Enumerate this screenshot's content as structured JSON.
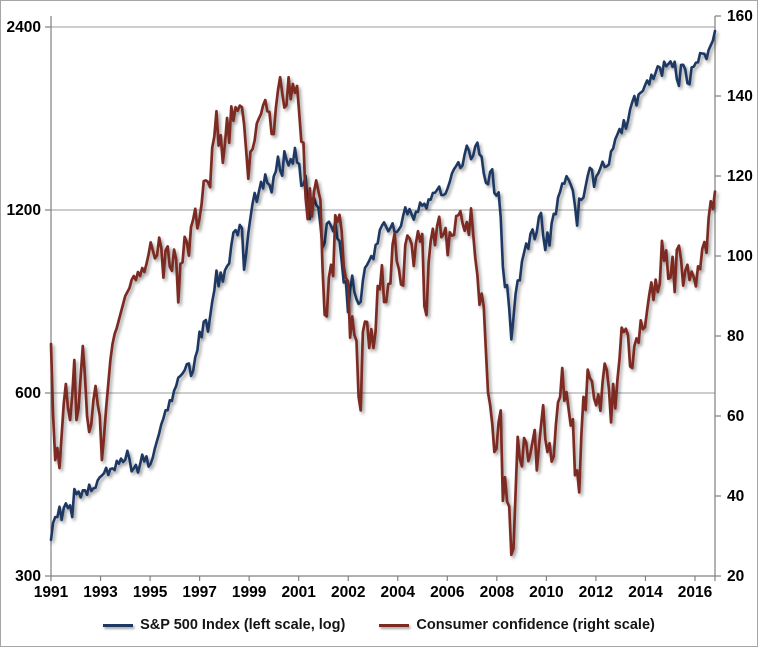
{
  "chart_data": {
    "type": "line",
    "title": "",
    "frequency": "monthly",
    "x_start": "1991-01",
    "x_end": "2017-02",
    "x_tick_labels": [
      "1991",
      "1993",
      "1995",
      "1997",
      "1999",
      "2001",
      "2002",
      "2004",
      "2006",
      "2008",
      "2010",
      "2012",
      "2014",
      "2016"
    ],
    "left_axis": {
      "scale": "log",
      "range": [
        300,
        2400
      ],
      "tick_labels": [
        "2400",
        "1200",
        "600",
        "300"
      ],
      "tick_values": [
        2400,
        1200,
        600,
        300
      ]
    },
    "right_axis": {
      "scale": "linear",
      "range": [
        20,
        160
      ],
      "tick_labels": [
        "160",
        "140",
        "120",
        "100",
        "80",
        "60",
        "40",
        "20"
      ],
      "tick_values": [
        160,
        140,
        120,
        100,
        80,
        60,
        40,
        20
      ]
    },
    "grid": "horizontal-at-left-ticks",
    "legend_position": "bottom-center",
    "colors": {
      "sp500": "#1F3864",
      "confidence": "#7B2B22",
      "axis": "#808080",
      "grid": "#9b9b9b",
      "tick_text": "#000000"
    },
    "series": [
      {
        "name": "S&P 500 Index (left scale, log)",
        "axis": "left",
        "color": "#1F3864",
        "values": [
          344,
          367,
          375,
          375,
          390,
          371,
          388,
          395,
          388,
          392,
          375,
          417,
          409,
          413,
          404,
          415,
          415,
          408,
          424,
          414,
          418,
          419,
          431,
          436,
          439,
          443,
          452,
          440,
          450,
          451,
          448,
          464,
          459,
          468,
          462,
          466,
          482,
          467,
          446,
          451,
          457,
          444,
          458,
          475,
          463,
          472,
          454,
          459,
          470,
          487,
          501,
          515,
          533,
          545,
          562,
          562,
          584,
          582,
          605,
          616,
          636,
          640,
          646,
          654,
          669,
          671,
          640,
          652,
          687,
          705,
          757,
          741,
          786,
          791,
          757,
          801,
          848,
          885,
          954,
          899,
          947,
          915,
          955,
          970,
          980,
          1049,
          1102,
          1112,
          1091,
          1134,
          1121,
          957,
          1017,
          1099,
          1164,
          1229,
          1280,
          1238,
          1286,
          1335,
          1302,
          1373,
          1329,
          1320,
          1283,
          1363,
          1389,
          1469,
          1394,
          1366,
          1499,
          1452,
          1421,
          1455,
          1431,
          1518,
          1437,
          1429,
          1315,
          1320,
          1366,
          1240,
          1160,
          1249,
          1256,
          1224,
          1211,
          1134,
          1041,
          1060,
          1139,
          1148,
          1130,
          1107,
          1147,
          1077,
          1067,
          990,
          912,
          916,
          815,
          886,
          936,
          880,
          856,
          841,
          848,
          917,
          964,
          975,
          990,
          1008,
          996,
          1051,
          1058,
          1112,
          1131,
          1145,
          1126,
          1107,
          1121,
          1141,
          1102,
          1104,
          1115,
          1130,
          1174,
          1212,
          1181,
          1204,
          1181,
          1157,
          1192,
          1191,
          1234,
          1220,
          1229,
          1207,
          1249,
          1248,
          1280,
          1281,
          1295,
          1311,
          1270,
          1270,
          1277,
          1304,
          1336,
          1378,
          1401,
          1418,
          1438,
          1407,
          1421,
          1482,
          1531,
          1503,
          1455,
          1474,
          1527,
          1549,
          1481,
          1468,
          1379,
          1331,
          1323,
          1386,
          1400,
          1280,
          1267,
          1283,
          1166,
          969,
          896,
          903,
          826,
          735,
          798,
          873,
          919,
          919,
          987,
          1021,
          1057,
          1036,
          1096,
          1115,
          1074,
          1104,
          1169,
          1187,
          1089,
          1031,
          1102,
          1049,
          1141,
          1183,
          1181,
          1258,
          1286,
          1327,
          1326,
          1364,
          1345,
          1321,
          1292,
          1219,
          1131,
          1253,
          1247,
          1258,
          1312,
          1366,
          1408,
          1398,
          1310,
          1362,
          1379,
          1407,
          1441,
          1412,
          1416,
          1426,
          1498,
          1515,
          1569,
          1598,
          1631,
          1606,
          1686,
          1633,
          1682,
          1757,
          1806,
          1848,
          1783,
          1859,
          1872,
          1884,
          1924,
          1960,
          1931,
          2003,
          1972,
          2018,
          2068,
          2059,
          1995,
          2105,
          2068,
          2086,
          2107,
          2063,
          2104,
          1972,
          1920,
          2079,
          2080,
          2044,
          1940,
          1932,
          2060,
          2065,
          2097,
          2099,
          2174,
          2171,
          2168,
          2126,
          2199,
          2239,
          2279,
          2364
        ]
      },
      {
        "name": "Consumer confidence (right scale)",
        "axis": "right",
        "color": "#7B2B22",
        "values": [
          78,
          60,
          49,
          52,
          47,
          55,
          63,
          68,
          62,
          59,
          65,
          74,
          59,
          62,
          70,
          77.5,
          70,
          60,
          56,
          58,
          64,
          67.5,
          63,
          60,
          49,
          55,
          62,
          68,
          74,
          78,
          80.5,
          82,
          84,
          86,
          88,
          90,
          91,
          92,
          94,
          95,
          94,
          96,
          95,
          97,
          96,
          98,
          100.4,
          103.4,
          101.4,
          99.4,
          100.2,
          104.6,
          102,
          94.6,
          101.4,
          102.4,
          97.3,
          96.3,
          101.6,
          99.2,
          88.4,
          98,
          98.4,
          104.8,
          103.5,
          100.1,
          107.2,
          109.1,
          111.8,
          106.9,
          109.3,
          113,
          118.7,
          118.9,
          118.5,
          117.2,
          127.1,
          129.9,
          136.2,
          127.6,
          130.2,
          123.3,
          128.1,
          134.5,
          128.3,
          137.4,
          133.8,
          137.2,
          136.3,
          137.6,
          137.2,
          133.1,
          126.4,
          119.3,
          126,
          126.7,
          128.9,
          133.1,
          134.4,
          135.5,
          137.7,
          139,
          136.2,
          136,
          130.5,
          130.5,
          137,
          141.4,
          144.7,
          140.8,
          137.1,
          137.7,
          144.7,
          139.2,
          143,
          140.8,
          142.5,
          135.8,
          128.6,
          128.3,
          114.7,
          109.2,
          116.9,
          109.9,
          116.1,
          118.9,
          116.3,
          114,
          97,
          85.3,
          84.9,
          94.6,
          97.8,
          95,
          110.2,
          108.5,
          110.3,
          106.3,
          97.4,
          94.5,
          93.7,
          79.6,
          84.9,
          80.3,
          78.8,
          64.8,
          61.4,
          81,
          83.6,
          83.5,
          77,
          81.7,
          77,
          81.1,
          92.5,
          91.7,
          97.7,
          88.5,
          88.5,
          93,
          93.1,
          102.8,
          105.7,
          98.7,
          96.7,
          92.9,
          92.6,
          102.7,
          105.1,
          104.4,
          103,
          97.5,
          103.1,
          106.2,
          103.6,
          105.5,
          87.5,
          85.2,
          98.3,
          103.8,
          106.8,
          102.7,
          107.5,
          109.8,
          104.7,
          105.4,
          107,
          100.2,
          105.9,
          105.1,
          105.3,
          110,
          110.2,
          111.2,
          108.2,
          106.3,
          108.5,
          105.3,
          111.9,
          105.6,
          99.5,
          95.2,
          87.8,
          90.6,
          87.3,
          76.4,
          65.9,
          62.8,
          58.1,
          51,
          51.9,
          58.5,
          61.4,
          38.8,
          44.7,
          38.6,
          37.4,
          25.3,
          26.9,
          40.8,
          54.8,
          49.3,
          47.4,
          54.5,
          53.4,
          48.7,
          50.6,
          53.6,
          56.5,
          46.4,
          52.3,
          57.7,
          62.7,
          54.3,
          51,
          53.2,
          48.6,
          49.9,
          57.8,
          63.4,
          64.8,
          72,
          63.8,
          66,
          61.7,
          57.6,
          59.2,
          45.2,
          46.4,
          40.9,
          55.2,
          64.8,
          61.5,
          71.6,
          69.5,
          68.7,
          64.4,
          62.7,
          65.4,
          61.3,
          68.4,
          73.1,
          71.5,
          66.7,
          58.4,
          68,
          61.9,
          69,
          74.3,
          82.1,
          81,
          81.8,
          80.2,
          72.4,
          72,
          77.5,
          79.4,
          78.3,
          83.9,
          81.7,
          82.2,
          86.4,
          90.3,
          93.4,
          89,
          94.1,
          91,
          93.1,
          103.8,
          98.8,
          101.4,
          94.3,
          94.6,
          99.8,
          91,
          101.5,
          102.6,
          99.1,
          92.6,
          96.3,
          97.8,
          94,
          96.1,
          94.7,
          92.4,
          97.4,
          96.7,
          101.8,
          103.5,
          100.8,
          109.5,
          113.7,
          111.8,
          116.1
        ]
      }
    ]
  },
  "legend": {
    "sp500_label": "S&P 500 Index (left scale, log)",
    "confidence_label": "Consumer confidence (right scale)"
  }
}
